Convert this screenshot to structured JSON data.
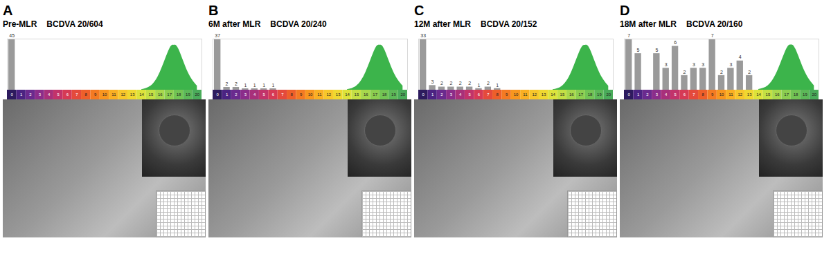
{
  "chart_data": [
    {
      "type": "bar",
      "panel": "A",
      "title": "Pre-MLR",
      "subtitle": "BCDVA 20/604",
      "categories": [
        0,
        1,
        2,
        3,
        4,
        5,
        6,
        7,
        8,
        9,
        10,
        11,
        12,
        13,
        14,
        15,
        16,
        17,
        18,
        19,
        20
      ],
      "values": [
        45,
        0,
        0,
        0,
        0,
        0,
        0,
        0,
        0,
        0,
        0,
        0,
        0,
        0,
        0,
        0,
        0,
        0,
        0,
        0,
        0
      ],
      "color": "#9a9a9a",
      "data_labels": true,
      "tick_labels": "x",
      "xlim": [
        -0.5,
        20.5
      ],
      "xticks": [
        0,
        1,
        2,
        3,
        4,
        5,
        6,
        7,
        8,
        9,
        10,
        11,
        12,
        13,
        14,
        15,
        16,
        17,
        18,
        19,
        20
      ],
      "ylim": [
        0,
        45
      ],
      "colors": [
        "#2d1b5e",
        "#4b2382",
        "#6a2a8e",
        "#8b2d8a",
        "#a8307a",
        "#c2336a",
        "#d63a55",
        "#e44a3c",
        "#ee5f2a",
        "#f47a22",
        "#f8961e",
        "#fab022",
        "#f8c72a",
        "#f0d830",
        "#dde33a",
        "#c4e044",
        "#a8d84c",
        "#8cce50",
        "#72c454",
        "#5cb858",
        "#4aab5a"
      ],
      "normal_curve": {
        "color": "#3cb44b",
        "x": [
          14,
          15,
          16,
          17,
          17.5,
          18,
          19,
          20
        ],
        "values": [
          0.5,
          3.6,
          15.8,
          36,
          39.6,
          36,
          15.8,
          3.6
        ]
      }
    },
    {
      "type": "bar",
      "panel": "B",
      "title": "6M after MLR",
      "subtitle": "BCDVA 20/240",
      "categories": [
        0,
        1,
        2,
        3,
        4,
        5,
        6,
        7,
        8,
        9,
        10,
        11,
        12,
        13,
        14,
        15,
        16,
        17,
        18,
        19,
        20
      ],
      "values": [
        37,
        2,
        2,
        1,
        1,
        1,
        1,
        0,
        0,
        0,
        0,
        0,
        0,
        0,
        0,
        0,
        0,
        0,
        0,
        0,
        0
      ],
      "color": "#9a9a9a",
      "data_labels": true,
      "tick_labels": "x",
      "xlim": [
        -0.5,
        20.5
      ],
      "xticks": [
        0,
        1,
        2,
        3,
        4,
        5,
        6,
        7,
        8,
        9,
        10,
        11,
        12,
        13,
        14,
        15,
        16,
        17,
        18,
        19,
        20
      ],
      "ylim": [
        0,
        37
      ],
      "colors": [
        "#2d1b5e",
        "#4b2382",
        "#6a2a8e",
        "#8b2d8a",
        "#a8307a",
        "#c2336a",
        "#d63a55",
        "#e44a3c",
        "#ee5f2a",
        "#f47a22",
        "#f8961e",
        "#fab022",
        "#f8c72a",
        "#f0d830",
        "#dde33a",
        "#c4e044",
        "#a8d84c",
        "#8cce50",
        "#72c454",
        "#5cb858",
        "#4aab5a"
      ],
      "normal_curve": {
        "color": "#3cb44b",
        "x": [
          14,
          15,
          16,
          17,
          17.5,
          18,
          19,
          20
        ],
        "values": [
          0.4,
          3,
          13,
          29.6,
          32.6,
          29.6,
          13,
          3
        ]
      }
    },
    {
      "type": "bar",
      "panel": "C",
      "title": "12M after MLR",
      "subtitle": "BCDVA 20/152",
      "categories": [
        0,
        1,
        2,
        3,
        4,
        5,
        6,
        7,
        8,
        9,
        10,
        11,
        12,
        13,
        14,
        15,
        16,
        17,
        18,
        19,
        20
      ],
      "values": [
        33,
        3,
        2,
        2,
        2,
        2,
        1,
        2,
        1,
        0,
        0,
        0,
        0,
        0,
        0,
        0,
        0,
        0,
        0,
        0,
        0
      ],
      "color": "#9a9a9a",
      "data_labels": true,
      "tick_labels": "x",
      "xlim": [
        -0.5,
        20.5
      ],
      "xticks": [
        0,
        1,
        2,
        3,
        4,
        5,
        6,
        7,
        8,
        9,
        10,
        11,
        12,
        13,
        14,
        15,
        16,
        17,
        18,
        19,
        20
      ],
      "ylim": [
        0,
        33
      ],
      "colors": [
        "#2d1b5e",
        "#4b2382",
        "#6a2a8e",
        "#8b2d8a",
        "#a8307a",
        "#c2336a",
        "#d63a55",
        "#e44a3c",
        "#ee5f2a",
        "#f47a22",
        "#f8961e",
        "#fab022",
        "#f8c72a",
        "#f0d830",
        "#dde33a",
        "#c4e044",
        "#a8d84c",
        "#8cce50",
        "#72c454",
        "#5cb858",
        "#4aab5a"
      ],
      "normal_curve": {
        "color": "#3cb44b",
        "x": [
          14,
          15,
          16,
          17,
          17.5,
          18,
          19,
          20
        ],
        "values": [
          0.3,
          2.6,
          11.6,
          26.4,
          29,
          26.4,
          11.6,
          2.6
        ]
      }
    },
    {
      "type": "bar",
      "panel": "D",
      "title": "18M after MLR",
      "subtitle": "BCDVA 20/160",
      "categories": [
        0,
        1,
        2,
        3,
        4,
        5,
        6,
        7,
        8,
        9,
        10,
        11,
        12,
        13,
        14,
        15,
        16,
        17,
        18,
        19,
        20
      ],
      "values": [
        7,
        5,
        0,
        5,
        3,
        6,
        2,
        3,
        3,
        7,
        2,
        3,
        4,
        2,
        0,
        0,
        0,
        0,
        0,
        0,
        0
      ],
      "color": "#9a9a9a",
      "data_labels": true,
      "tick_labels": "x",
      "xlim": [
        -0.5,
        20.5
      ],
      "xticks": [
        0,
        1,
        2,
        3,
        4,
        5,
        6,
        7,
        8,
        9,
        10,
        11,
        12,
        13,
        14,
        15,
        16,
        17,
        18,
        19,
        20
      ],
      "ylim": [
        0,
        7
      ],
      "colors": [
        "#2d1b5e",
        "#4b2382",
        "#6a2a8e",
        "#8b2d8a",
        "#a8307a",
        "#c2336a",
        "#d63a55",
        "#e44a3c",
        "#ee5f2a",
        "#f47a22",
        "#f8961e",
        "#fab022",
        "#f8c72a",
        "#f0d830",
        "#dde33a",
        "#c4e044",
        "#a8d84c",
        "#8cce50",
        "#72c454",
        "#5cb858",
        "#4aab5a"
      ],
      "normal_curve": {
        "color": "#3cb44b",
        "x": [
          14,
          15,
          16,
          17,
          17.5,
          18,
          19,
          20
        ],
        "values": [
          0.1,
          0.6,
          2.5,
          5.6,
          6.2,
          5.6,
          2.5,
          0.6
        ]
      }
    }
  ]
}
